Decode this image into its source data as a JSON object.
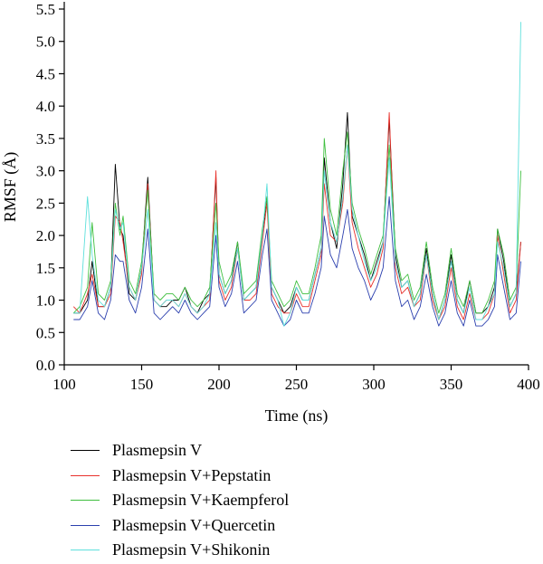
{
  "chart_data": {
    "type": "line",
    "title": "",
    "xlabel": "Time (ns)",
    "ylabel": "RMSF (Å)",
    "xlim": [
      100,
      400
    ],
    "ylim": [
      0,
      5.5
    ],
    "xticks": [
      "100",
      "150",
      "200",
      "250",
      "300",
      "350",
      "400"
    ],
    "yticks": [
      "0.0",
      "0.5",
      "1.0",
      "1.5",
      "2.0",
      "2.5",
      "3.0",
      "3.5",
      "4.0",
      "4.5",
      "5.0",
      "5.5"
    ],
    "grid": false,
    "legend_position": "below",
    "series": [
      {
        "name": "Plasmepsin V",
        "color": "#000000",
        "x": [
          106,
          110,
          115,
          118,
          122,
          126,
          130,
          133,
          136,
          138,
          142,
          146,
          150,
          154,
          158,
          162,
          166,
          170,
          174,
          178,
          182,
          186,
          190,
          194,
          198,
          200,
          204,
          208,
          212,
          216,
          220,
          224,
          228,
          231,
          234,
          238,
          242,
          246,
          250,
          254,
          258,
          262,
          266,
          268,
          272,
          276,
          280,
          283,
          286,
          290,
          294,
          298,
          302,
          306,
          310,
          314,
          318,
          322,
          326,
          330,
          334,
          338,
          342,
          346,
          350,
          354,
          358,
          362,
          366,
          370,
          374,
          378,
          380,
          384,
          388,
          392,
          395
        ],
        "values": [
          0.8,
          0.8,
          1.0,
          1.6,
          0.9,
          0.9,
          1.2,
          3.1,
          2.1,
          2.0,
          1.1,
          1.0,
          1.5,
          2.9,
          1.0,
          0.9,
          0.9,
          1.0,
          1.0,
          1.2,
          0.9,
          0.8,
          1.0,
          1.1,
          2.9,
          1.4,
          1.1,
          1.3,
          1.9,
          1.0,
          1.1,
          1.2,
          2.0,
          2.6,
          1.2,
          1.0,
          0.8,
          0.9,
          1.2,
          1.0,
          1.0,
          1.4,
          1.8,
          3.2,
          2.2,
          1.8,
          2.8,
          3.9,
          2.3,
          2.0,
          1.7,
          1.3,
          1.6,
          1.9,
          3.8,
          1.7,
          1.2,
          1.3,
          0.9,
          1.1,
          1.8,
          1.1,
          0.7,
          1.0,
          1.7,
          1.0,
          0.8,
          1.3,
          0.8,
          0.8,
          0.9,
          1.2,
          2.1,
          1.6,
          0.9,
          1.1,
          1.9
        ]
      },
      {
        "name": "Plasmepsin V+Pepstatin",
        "color": "#e8322c",
        "x": [
          106,
          110,
          115,
          118,
          122,
          126,
          130,
          133,
          136,
          138,
          142,
          146,
          150,
          154,
          158,
          162,
          166,
          170,
          174,
          178,
          182,
          186,
          190,
          194,
          198,
          200,
          204,
          208,
          212,
          216,
          220,
          224,
          228,
          231,
          234,
          238,
          242,
          246,
          250,
          254,
          258,
          262,
          266,
          268,
          272,
          276,
          280,
          283,
          286,
          290,
          294,
          298,
          302,
          306,
          310,
          314,
          318,
          322,
          326,
          330,
          334,
          338,
          342,
          346,
          350,
          354,
          358,
          362,
          366,
          370,
          374,
          378,
          380,
          384,
          388,
          392,
          395
        ],
        "values": [
          0.9,
          0.8,
          1.1,
          1.4,
          0.9,
          0.9,
          1.1,
          2.3,
          2.2,
          1.9,
          1.2,
          1.0,
          1.4,
          2.8,
          1.0,
          0.9,
          1.0,
          1.0,
          0.9,
          1.1,
          0.9,
          0.8,
          0.9,
          1.0,
          3.0,
          1.3,
          1.0,
          1.2,
          1.8,
          1.0,
          1.0,
          1.1,
          1.9,
          2.5,
          1.1,
          0.9,
          0.8,
          0.8,
          1.1,
          0.9,
          0.9,
          1.3,
          1.7,
          2.8,
          2.0,
          1.9,
          2.5,
          3.4,
          2.2,
          1.8,
          1.5,
          1.2,
          1.4,
          1.8,
          3.9,
          1.5,
          1.1,
          1.2,
          0.9,
          1.0,
          1.7,
          1.0,
          0.7,
          0.9,
          1.5,
          0.9,
          0.7,
          1.1,
          0.7,
          0.7,
          0.8,
          1.1,
          2.0,
          1.4,
          0.8,
          1.0,
          1.9
        ]
      },
      {
        "name": "Plasmepsin V+Kaempferol",
        "color": "#3fbf3f",
        "x": [
          106,
          110,
          115,
          118,
          122,
          126,
          130,
          133,
          136,
          138,
          142,
          146,
          150,
          154,
          158,
          162,
          166,
          170,
          174,
          178,
          182,
          186,
          190,
          194,
          198,
          200,
          204,
          208,
          212,
          216,
          220,
          224,
          228,
          231,
          234,
          238,
          242,
          246,
          250,
          254,
          258,
          262,
          266,
          268,
          272,
          276,
          280,
          283,
          286,
          290,
          294,
          298,
          302,
          306,
          310,
          314,
          318,
          322,
          326,
          330,
          334,
          338,
          342,
          346,
          350,
          354,
          358,
          362,
          366,
          370,
          374,
          378,
          380,
          384,
          388,
          392,
          395
        ],
        "values": [
          0.8,
          0.9,
          1.2,
          2.2,
          1.1,
          1.0,
          1.3,
          2.5,
          2.0,
          2.3,
          1.3,
          1.1,
          1.6,
          2.7,
          1.1,
          1.0,
          1.1,
          1.1,
          1.0,
          1.2,
          1.0,
          0.9,
          1.0,
          1.2,
          2.5,
          1.6,
          1.2,
          1.4,
          1.9,
          1.1,
          1.2,
          1.3,
          2.1,
          2.6,
          1.3,
          1.1,
          0.9,
          1.0,
          1.3,
          1.1,
          1.1,
          1.5,
          2.0,
          3.5,
          2.4,
          2.0,
          3.0,
          3.6,
          2.5,
          2.1,
          1.8,
          1.4,
          1.7,
          2.0,
          3.4,
          1.8,
          1.3,
          1.4,
          1.0,
          1.2,
          1.9,
          1.2,
          0.8,
          1.1,
          1.8,
          1.1,
          0.9,
          1.3,
          0.8,
          0.8,
          1.0,
          1.3,
          2.1,
          1.7,
          1.0,
          1.2,
          3.0
        ]
      },
      {
        "name": "Plasmepsin V+Quercetin",
        "color": "#2b3fae",
        "x": [
          106,
          110,
          115,
          118,
          122,
          126,
          130,
          133,
          136,
          138,
          142,
          146,
          150,
          154,
          158,
          162,
          166,
          170,
          174,
          178,
          182,
          186,
          190,
          194,
          198,
          200,
          204,
          208,
          212,
          216,
          220,
          224,
          228,
          231,
          234,
          238,
          242,
          246,
          250,
          254,
          258,
          262,
          266,
          268,
          272,
          276,
          280,
          283,
          286,
          290,
          294,
          298,
          302,
          306,
          310,
          314,
          318,
          322,
          326,
          330,
          334,
          338,
          342,
          346,
          350,
          354,
          358,
          362,
          366,
          370,
          374,
          378,
          380,
          384,
          388,
          392,
          395
        ],
        "values": [
          0.7,
          0.7,
          0.9,
          1.3,
          0.8,
          0.7,
          1.0,
          1.7,
          1.6,
          1.6,
          1.0,
          0.8,
          1.2,
          2.1,
          0.8,
          0.7,
          0.8,
          0.9,
          0.8,
          1.0,
          0.8,
          0.7,
          0.8,
          0.9,
          2.0,
          1.2,
          0.9,
          1.1,
          1.6,
          0.8,
          0.9,
          1.0,
          1.7,
          2.1,
          1.0,
          0.8,
          0.6,
          0.7,
          1.0,
          0.8,
          0.8,
          1.1,
          1.5,
          2.3,
          1.7,
          1.5,
          2.0,
          2.4,
          1.8,
          1.5,
          1.3,
          1.0,
          1.2,
          1.5,
          2.6,
          1.3,
          0.9,
          1.0,
          0.7,
          0.9,
          1.4,
          0.9,
          0.6,
          0.8,
          1.3,
          0.8,
          0.6,
          1.0,
          0.6,
          0.6,
          0.7,
          0.9,
          1.7,
          1.2,
          0.7,
          0.8,
          1.6
        ]
      },
      {
        "name": "Plasmepsin V+Shikonin",
        "color": "#5ee0dc",
        "x": [
          106,
          110,
          115,
          118,
          122,
          126,
          130,
          133,
          136,
          138,
          142,
          146,
          150,
          154,
          158,
          162,
          166,
          170,
          174,
          178,
          182,
          186,
          190,
          194,
          198,
          200,
          204,
          208,
          212,
          216,
          220,
          224,
          228,
          231,
          234,
          238,
          242,
          246,
          250,
          254,
          258,
          262,
          266,
          268,
          272,
          276,
          280,
          283,
          286,
          290,
          294,
          298,
          302,
          306,
          310,
          314,
          318,
          322,
          326,
          330,
          334,
          338,
          342,
          346,
          350,
          354,
          358,
          362,
          366,
          370,
          374,
          378,
          380,
          384,
          388,
          392,
          395
        ],
        "values": [
          0.8,
          0.8,
          2.6,
          1.7,
          1.0,
          0.9,
          1.2,
          2.4,
          2.1,
          2.2,
          1.2,
          1.0,
          1.5,
          2.4,
          1.0,
          0.9,
          1.0,
          1.0,
          0.9,
          1.1,
          0.9,
          0.8,
          0.9,
          1.1,
          2.2,
          1.4,
          1.1,
          1.3,
          1.8,
          1.0,
          1.1,
          1.2,
          2.0,
          2.8,
          1.2,
          1.0,
          0.6,
          0.8,
          1.2,
          1.0,
          1.0,
          1.4,
          1.8,
          3.0,
          2.2,
          1.9,
          2.6,
          3.4,
          2.4,
          2.0,
          1.6,
          1.3,
          1.5,
          1.9,
          3.2,
          1.6,
          1.2,
          1.3,
          0.9,
          1.1,
          1.7,
          1.1,
          0.7,
          1.0,
          1.6,
          1.0,
          0.8,
          1.2,
          0.7,
          0.7,
          0.9,
          1.1,
          1.9,
          1.5,
          0.9,
          1.1,
          5.3
        ]
      }
    ]
  }
}
